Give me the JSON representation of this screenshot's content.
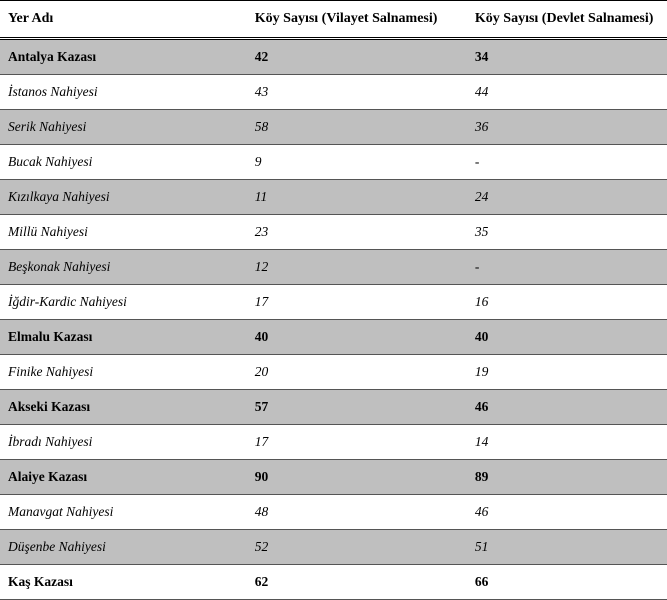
{
  "columns": [
    "Yer Adı",
    "Köy Sayısı (Vilayet Salnamesi)",
    "Köy Sayısı (Devlet Salnamesi)"
  ],
  "rows": [
    {
      "type": "kaza",
      "cells": [
        "Antalya Kazası",
        "42",
        "34"
      ]
    },
    {
      "type": "nahiye",
      "cells": [
        "İstanos Nahiyesi",
        "43",
        "44"
      ]
    },
    {
      "type": "nahiye",
      "cells": [
        "Serik Nahiyesi",
        "58",
        "36"
      ]
    },
    {
      "type": "nahiye",
      "cells": [
        "Bucak Nahiyesi",
        "9",
        "-"
      ]
    },
    {
      "type": "nahiye",
      "cells": [
        "Kızılkaya Nahiyesi",
        "11",
        "24"
      ]
    },
    {
      "type": "nahiye",
      "cells": [
        "Millü Nahiyesi",
        "23",
        "35"
      ]
    },
    {
      "type": "nahiye",
      "cells": [
        "Beşkonak Nahiyesi",
        "12",
        "-"
      ]
    },
    {
      "type": "nahiye",
      "cells": [
        "İğdir-Kardic Nahiyesi",
        "17",
        "16"
      ]
    },
    {
      "type": "kaza",
      "cells": [
        "Elmalu Kazası",
        "40",
        "40"
      ]
    },
    {
      "type": "nahiye",
      "cells": [
        "Finike Nahiyesi",
        "20",
        "19"
      ]
    },
    {
      "type": "kaza",
      "cells": [
        "Akseki Kazası",
        "57",
        "46"
      ]
    },
    {
      "type": "nahiye",
      "cells": [
        "İbradı Nahiyesi",
        "17",
        "14"
      ]
    },
    {
      "type": "kaza",
      "cells": [
        "Alaiye Kazası",
        "90",
        "89"
      ]
    },
    {
      "type": "nahiye",
      "cells": [
        "Manavgat Nahiyesi",
        "48",
        "46"
      ]
    },
    {
      "type": "nahiye",
      "cells": [
        "Düşenbe Nahiyesi",
        "52",
        "51"
      ]
    },
    {
      "type": "kaza",
      "cells": [
        "Kaş Kazası",
        "62",
        "66"
      ]
    }
  ]
}
